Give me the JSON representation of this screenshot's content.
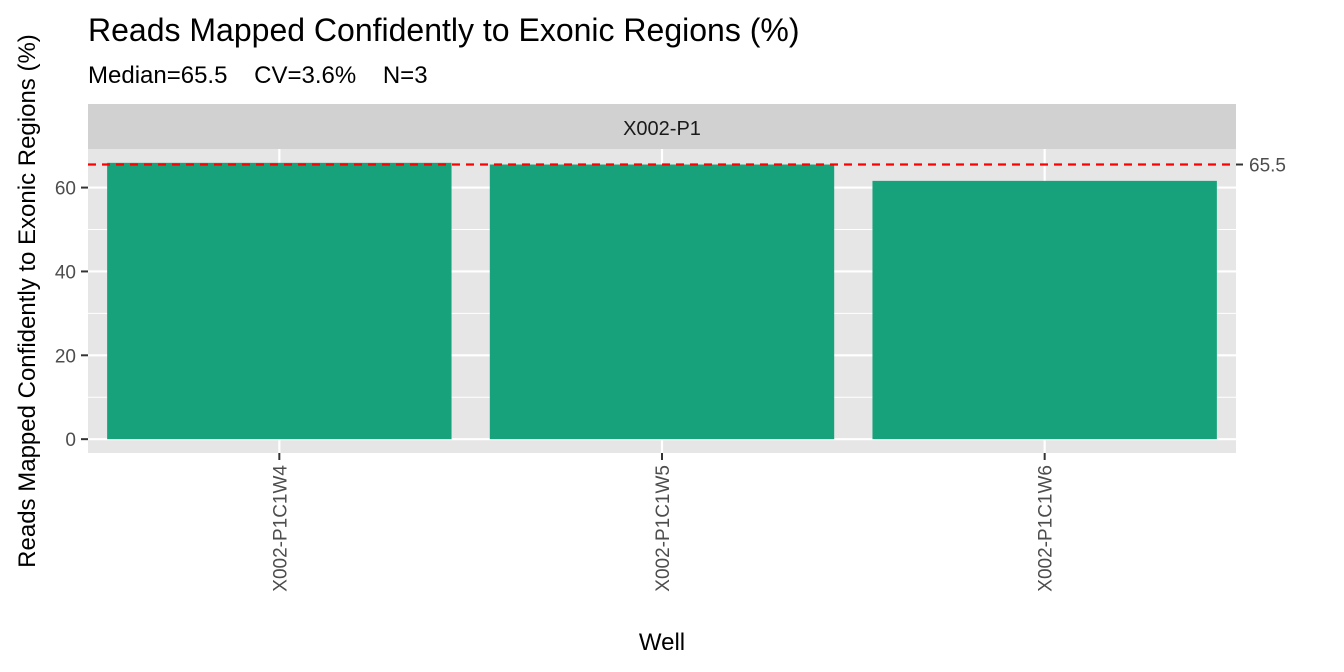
{
  "chart_data": {
    "type": "bar",
    "title": "Reads Mapped Confidently to Exonic Regions (%)",
    "subtitle": "Median=65.5    CV=3.6%    N=3",
    "facet_label": "X002-P1",
    "xlabel": "Well",
    "ylabel": "Reads Mapped Confidently to Exonic Regions (%)",
    "categories": [
      "X002-P1C1W4",
      "X002-P1C1W5",
      "X002-P1C1W6"
    ],
    "values": [
      65.9,
      65.5,
      61.6
    ],
    "ylim": [
      -3.3,
      69.2
    ],
    "yticks": [
      0,
      20,
      40,
      60
    ],
    "ytick_labels": [
      "0",
      "20",
      "40",
      "60"
    ],
    "reference_line": {
      "value": 65.5,
      "label": "65.5",
      "style": "dashed",
      "color": "#ff0000"
    },
    "bar_color": "#17a27c",
    "panel_color": "#e6e6e6",
    "strip_color": "#d1d1d1",
    "grid": true,
    "legend": "none"
  }
}
